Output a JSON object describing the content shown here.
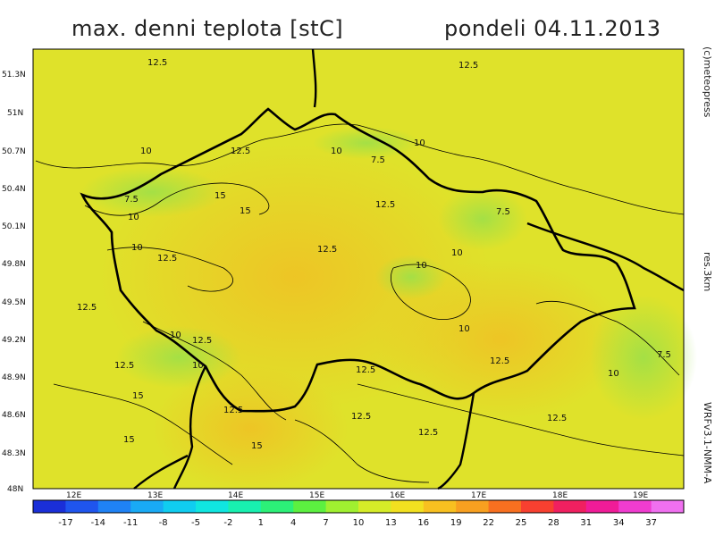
{
  "title_left": "max. denni teplota [stC]",
  "title_right": "pondeli 04.11.2013",
  "side_labels": {
    "copyright": "(c)meteopress",
    "resolution": "res.3km",
    "model": "WRFv3.1-NMM-A"
  },
  "lat_labels": [
    "51.3N",
    "51N",
    "50.7N",
    "50.4N",
    "50.1N",
    "49.8N",
    "49.5N",
    "49.2N",
    "48.9N",
    "48.6N",
    "48.3N",
    "48N"
  ],
  "lon_labels": [
    "12E",
    "13E",
    "14E",
    "15E",
    "16E",
    "17E",
    "18E",
    "19E"
  ],
  "colorbar": {
    "ticks": [
      "-17",
      "-14",
      "-11",
      "-8",
      "-5",
      "-2",
      "1",
      "4",
      "7",
      "10",
      "13",
      "16",
      "19",
      "22",
      "25",
      "28",
      "31",
      "34",
      "37"
    ],
    "colors": [
      "#1a2fd8",
      "#1f55ee",
      "#1f82f5",
      "#19aaf5",
      "#10cdf0",
      "#10e6e0",
      "#18f0b0",
      "#2cf078",
      "#5cf040",
      "#a0f030",
      "#d6ec28",
      "#f2e020",
      "#f8c020",
      "#f8a020",
      "#f87020",
      "#f84030",
      "#f02060",
      "#f01c98",
      "#f03cd0",
      "#f070f0"
    ]
  },
  "contour_labels": [
    "12.5",
    "12.5",
    "12.5",
    "12.5",
    "12.5",
    "12.5",
    "12.5",
    "12.5",
    "12.5",
    "12.5",
    "12.5",
    "12.5",
    "12.5",
    "12.5",
    "12.5",
    "10",
    "10",
    "10",
    "10",
    "10",
    "10",
    "10",
    "10",
    "10",
    "10",
    "10",
    "7.5",
    "7.5",
    "7.5",
    "7.5",
    "15",
    "15",
    "15",
    "15",
    "15"
  ]
}
